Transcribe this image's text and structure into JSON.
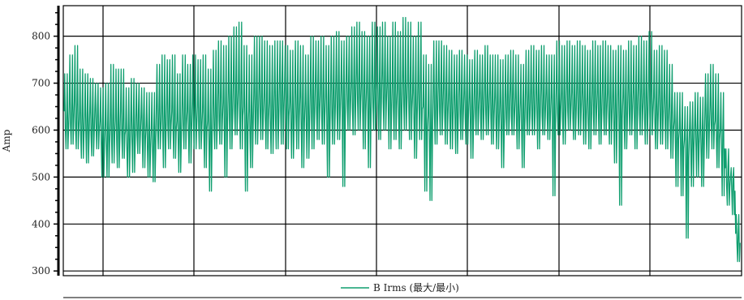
{
  "chart_data": {
    "type": "line",
    "title": "",
    "xlabel": "",
    "ylabel": "Amp",
    "ylim": [
      290,
      865
    ],
    "yticks": [
      300,
      400,
      500,
      600,
      700,
      800
    ],
    "ytick_labels": [
      "300",
      "400",
      "500",
      "600",
      "700",
      "800"
    ],
    "x_gridlines": 8,
    "grid": true,
    "legend_position": "bottom-center",
    "series": [
      {
        "name": "B Irms (最大/最小)",
        "color": "#0e9e6e",
        "values": [
          [
            640,
            560,
            720,
            600
          ],
          [
            650,
            570,
            760,
            610
          ],
          [
            660,
            560,
            780,
            600
          ],
          [
            640,
            540,
            730,
            590
          ],
          [
            630,
            530,
            720,
            585
          ],
          [
            640,
            545,
            710,
            590
          ],
          [
            645,
            560,
            700,
            600
          ],
          [
            620,
            500,
            690,
            570
          ],
          [
            610,
            500,
            700,
            565
          ],
          [
            630,
            530,
            740,
            590
          ],
          [
            620,
            520,
            730,
            580
          ],
          [
            640,
            540,
            730,
            590
          ],
          [
            600,
            500,
            690,
            560
          ],
          [
            620,
            510,
            710,
            575
          ],
          [
            640,
            550,
            700,
            590
          ],
          [
            630,
            520,
            690,
            580
          ],
          [
            610,
            500,
            680,
            560
          ],
          [
            600,
            490,
            680,
            555
          ],
          [
            650,
            560,
            740,
            600
          ],
          [
            640,
            520,
            760,
            595
          ],
          [
            660,
            560,
            750,
            610
          ],
          [
            640,
            540,
            760,
            600
          ],
          [
            620,
            510,
            720,
            580
          ],
          [
            650,
            560,
            760,
            610
          ],
          [
            640,
            530,
            740,
            600
          ],
          [
            660,
            560,
            760,
            610
          ],
          [
            650,
            560,
            750,
            605
          ],
          [
            640,
            520,
            760,
            600
          ],
          [
            620,
            470,
            730,
            585
          ],
          [
            650,
            560,
            770,
            605
          ],
          [
            680,
            570,
            790,
            620
          ],
          [
            660,
            500,
            780,
            610
          ],
          [
            680,
            560,
            800,
            620
          ],
          [
            700,
            590,
            820,
            640
          ],
          [
            690,
            560,
            830,
            630
          ],
          [
            650,
            470,
            780,
            600
          ],
          [
            640,
            520,
            760,
            600
          ],
          [
            680,
            570,
            800,
            620
          ],
          [
            690,
            580,
            800,
            630
          ],
          [
            670,
            560,
            790,
            620
          ],
          [
            660,
            550,
            780,
            610
          ],
          [
            680,
            560,
            790,
            620
          ],
          [
            700,
            570,
            790,
            640
          ],
          [
            690,
            560,
            780,
            630
          ],
          [
            660,
            540,
            770,
            610
          ],
          [
            680,
            560,
            790,
            620
          ],
          [
            670,
            520,
            780,
            615
          ],
          [
            660,
            540,
            760,
            610
          ],
          [
            680,
            560,
            800,
            625
          ],
          [
            700,
            580,
            790,
            640
          ],
          [
            690,
            570,
            800,
            630
          ],
          [
            670,
            500,
            780,
            610
          ],
          [
            690,
            570,
            800,
            630
          ],
          [
            700,
            580,
            810,
            640
          ],
          [
            690,
            480,
            790,
            630
          ],
          [
            710,
            600,
            800,
            650
          ],
          [
            700,
            590,
            820,
            645
          ],
          [
            720,
            600,
            830,
            660
          ],
          [
            700,
            560,
            810,
            640
          ],
          [
            690,
            520,
            800,
            630
          ],
          [
            710,
            600,
            830,
            650
          ],
          [
            700,
            580,
            820,
            645
          ],
          [
            720,
            600,
            830,
            660
          ],
          [
            700,
            560,
            800,
            640
          ],
          [
            700,
            580,
            830,
            645
          ],
          [
            690,
            560,
            810,
            630
          ],
          [
            710,
            600,
            840,
            655
          ],
          [
            700,
            580,
            830,
            645
          ],
          [
            680,
            540,
            800,
            625
          ],
          [
            700,
            580,
            830,
            645
          ],
          [
            650,
            470,
            760,
            600
          ],
          [
            630,
            450,
            740,
            590
          ],
          [
            690,
            570,
            790,
            630
          ],
          [
            700,
            590,
            790,
            640
          ],
          [
            690,
            570,
            780,
            630
          ],
          [
            680,
            560,
            770,
            625
          ],
          [
            670,
            550,
            760,
            615
          ],
          [
            690,
            580,
            770,
            630
          ],
          [
            680,
            570,
            760,
            625
          ],
          [
            670,
            540,
            750,
            615
          ],
          [
            690,
            590,
            770,
            635
          ],
          [
            680,
            580,
            760,
            625
          ],
          [
            690,
            590,
            780,
            635
          ],
          [
            680,
            570,
            760,
            625
          ],
          [
            670,
            560,
            760,
            615
          ],
          [
            660,
            520,
            750,
            605
          ],
          [
            680,
            590,
            760,
            625
          ],
          [
            690,
            590,
            770,
            630
          ],
          [
            670,
            560,
            760,
            615
          ],
          [
            660,
            520,
            740,
            600
          ],
          [
            680,
            590,
            770,
            625
          ],
          [
            690,
            590,
            780,
            630
          ],
          [
            680,
            560,
            770,
            625
          ],
          [
            690,
            590,
            780,
            630
          ],
          [
            680,
            580,
            760,
            625
          ],
          [
            670,
            460,
            760,
            615
          ],
          [
            690,
            590,
            790,
            635
          ],
          [
            680,
            570,
            780,
            625
          ],
          [
            690,
            600,
            790,
            640
          ],
          [
            680,
            580,
            780,
            625
          ],
          [
            690,
            590,
            790,
            635
          ],
          [
            680,
            570,
            780,
            625
          ],
          [
            670,
            560,
            770,
            615
          ],
          [
            690,
            590,
            790,
            635
          ],
          [
            680,
            570,
            780,
            625
          ],
          [
            690,
            590,
            790,
            635
          ],
          [
            680,
            570,
            780,
            625
          ],
          [
            670,
            530,
            770,
            615
          ],
          [
            680,
            440,
            780,
            625
          ],
          [
            670,
            560,
            770,
            615
          ],
          [
            690,
            590,
            790,
            635
          ],
          [
            680,
            560,
            780,
            625
          ],
          [
            690,
            590,
            800,
            635
          ],
          [
            680,
            570,
            790,
            625
          ],
          [
            690,
            590,
            810,
            635
          ],
          [
            670,
            560,
            770,
            615
          ],
          [
            680,
            570,
            780,
            625
          ],
          [
            670,
            560,
            770,
            615
          ],
          [
            650,
            540,
            740,
            600
          ],
          [
            620,
            480,
            680,
            580
          ],
          [
            600,
            460,
            680,
            560
          ],
          [
            580,
            370,
            650,
            540
          ],
          [
            600,
            480,
            660,
            560
          ],
          [
            610,
            500,
            680,
            570
          ],
          [
            600,
            480,
            670,
            560
          ],
          [
            640,
            540,
            720,
            600
          ],
          [
            650,
            560,
            740,
            610
          ],
          [
            620,
            520,
            720,
            580
          ],
          [
            600,
            460,
            680,
            560
          ],
          [
            520,
            440,
            560,
            480
          ],
          [
            500,
            420,
            520,
            470
          ],
          [
            380,
            320,
            420,
            360
          ]
        ]
      }
    ]
  }
}
